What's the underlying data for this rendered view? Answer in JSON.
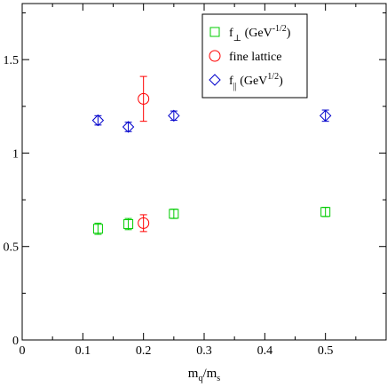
{
  "chart_data": {
    "type": "scatter",
    "xlim": [
      0,
      0.6
    ],
    "ylim": [
      0,
      1.8
    ],
    "x_ticks": [
      "0",
      "0.1",
      "0.2",
      "0.3",
      "0.4",
      "0.5"
    ],
    "y_ticks": [
      "0",
      "0.5",
      "1",
      "1.5"
    ],
    "xlabel": {
      "main": "m",
      "sub1": "q",
      "slash": "/m",
      "sub2": "s"
    },
    "grid": false,
    "legend_position": "top-right",
    "series": [
      {
        "name": "f_perp",
        "legend": {
          "main": "f",
          "sub": "⊥",
          "unit": " (GeV",
          "sup": "-1/2",
          "close": ")"
        },
        "marker": "square",
        "color": "#00cc00",
        "points": [
          {
            "x": 0.125,
            "y": 0.595,
            "err": 0.03
          },
          {
            "x": 0.175,
            "y": 0.62,
            "err": 0.03
          },
          {
            "x": 0.25,
            "y": 0.675,
            "err": 0.025
          },
          {
            "x": 0.5,
            "y": 0.685,
            "err": 0.025
          }
        ]
      },
      {
        "name": "fine lattice",
        "legend": {
          "main": "fine lattice"
        },
        "marker": "circle",
        "color": "#ff0000",
        "points": [
          {
            "x": 0.2,
            "y": 1.29,
            "err": 0.12
          },
          {
            "x": 0.2,
            "y": 0.625,
            "err": 0.045
          }
        ]
      },
      {
        "name": "f_par",
        "legend": {
          "main": "f",
          "sub": "||",
          "unit": " (GeV",
          "sup": "1/2",
          "close": ")"
        },
        "marker": "diamond",
        "color": "#0000cc",
        "points": [
          {
            "x": 0.125,
            "y": 1.175,
            "err": 0.025
          },
          {
            "x": 0.175,
            "y": 1.14,
            "err": 0.025
          },
          {
            "x": 0.25,
            "y": 1.2,
            "err": 0.025
          },
          {
            "x": 0.5,
            "y": 1.2,
            "err": 0.03
          }
        ]
      }
    ]
  }
}
